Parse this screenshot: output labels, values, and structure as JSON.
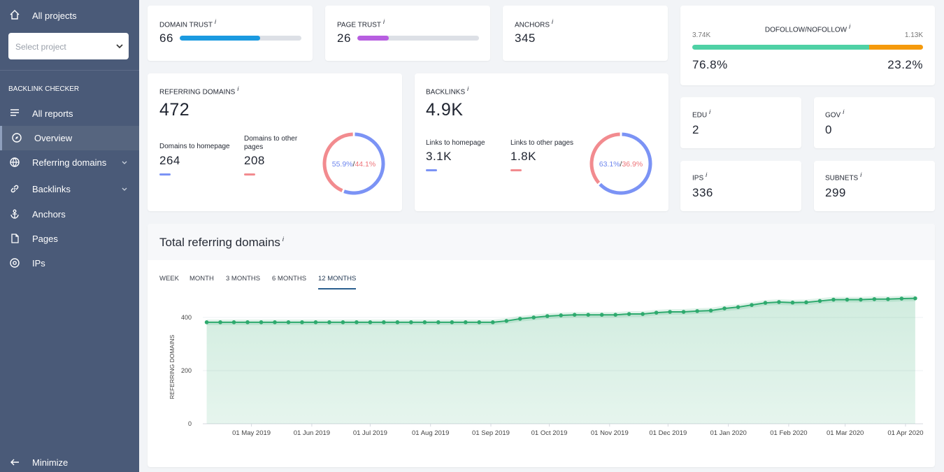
{
  "sidebar": {
    "all_projects": "All projects",
    "select_placeholder": "Select project",
    "section": "BACKLINK CHECKER",
    "nav": [
      "All reports",
      "Overview",
      "Referring domains",
      "Backlinks",
      "Anchors",
      "Pages",
      "IPs"
    ],
    "active": 1,
    "minimize": "Minimize"
  },
  "info_icon": "i",
  "domain_trust": {
    "label": "DOMAIN TRUST",
    "value": 66,
    "xlim": [
      0,
      100
    ]
  },
  "page_trust": {
    "label": "PAGE TRUST",
    "value": 26,
    "xlim": [
      0,
      100
    ]
  },
  "anchors": {
    "label": "ANCHORS",
    "value": 345
  },
  "dofollow": {
    "label": "DOFOLLOW/NOFOLLOW",
    "dofollow_count": "3.74K",
    "nofollow_count": "1.13K",
    "dofollow_share": {
      "value": 76.8,
      "label": "76.8%"
    },
    "nofollow_share": {
      "value": 23.2,
      "label": "23.2%"
    }
  },
  "referring_domains": {
    "label": "REFERRING DOMAINS",
    "value": 472,
    "homepage": {
      "label": "Domains to homepage",
      "value": 264
    },
    "other": {
      "label": "Domains to other pages",
      "value": 208
    },
    "homepage_share": {
      "value": 55.9,
      "label": "55.9%"
    },
    "other_share": {
      "value": 44.1,
      "label": "44.1%"
    },
    "separator": "/"
  },
  "backlinks": {
    "label": "BACKLINKS",
    "value": "4.9K",
    "homepage": {
      "label": "Links to homepage",
      "value": "3.1K"
    },
    "other": {
      "label": "Links to other pages",
      "value": "1.8K"
    },
    "homepage_share": {
      "value": 63.1,
      "label": "63.1%"
    },
    "other_share": {
      "value": 36.9,
      "label": "36.9%"
    },
    "separator": "/"
  },
  "edu": {
    "label": "EDU",
    "value": 2
  },
  "gov": {
    "label": "GOV",
    "value": 0
  },
  "ips": {
    "label": "IPS",
    "value": 336
  },
  "subnets": {
    "label": "SUBNETS",
    "value": 299
  },
  "chart_data": {
    "type": "line",
    "title": "Total referring domains",
    "tabs": [
      "WEEK",
      "MONTH",
      "3 MONTHS",
      "6 MONTHS",
      "12 MONTHS"
    ],
    "active_tab": 4,
    "y_label": "REFERRING DOMAINS",
    "color": "#2eaa6e",
    "grid": true,
    "x": [
      "2019-04-08",
      "2019-04-15",
      "2019-04-22",
      "2019-04-29",
      "2019-05-06",
      "2019-05-13",
      "2019-05-20",
      "2019-05-27",
      "2019-06-03",
      "2019-06-10",
      "2019-06-17",
      "2019-06-24",
      "2019-07-01",
      "2019-07-08",
      "2019-07-15",
      "2019-07-22",
      "2019-07-29",
      "2019-08-05",
      "2019-08-12",
      "2019-08-19",
      "2019-08-26",
      "2019-09-02",
      "2019-09-09",
      "2019-09-16",
      "2019-09-23",
      "2019-09-30",
      "2019-10-07",
      "2019-10-14",
      "2019-10-21",
      "2019-10-28",
      "2019-11-04",
      "2019-11-11",
      "2019-11-18",
      "2019-11-25",
      "2019-12-02",
      "2019-12-09",
      "2019-12-16",
      "2019-12-23",
      "2019-12-30",
      "2020-01-06",
      "2020-01-13",
      "2020-01-20",
      "2020-01-27",
      "2020-02-03",
      "2020-02-10",
      "2020-02-17",
      "2020-02-24",
      "2020-03-02",
      "2020-03-09",
      "2020-03-16",
      "2020-03-23",
      "2020-03-30",
      "2020-04-06"
    ],
    "values": [
      382,
      382,
      382,
      382,
      382,
      382,
      382,
      382,
      382,
      382,
      382,
      382,
      382,
      382,
      382,
      382,
      382,
      382,
      382,
      382,
      382,
      382,
      387,
      395,
      400,
      405,
      408,
      410,
      410,
      410,
      410,
      413,
      413,
      418,
      421,
      421,
      424,
      426,
      434,
      439,
      447,
      455,
      458,
      456,
      457,
      462,
      467,
      467,
      467,
      469,
      469,
      471,
      472
    ],
    "xlim": [
      "2019-04-06",
      "2020-04-10"
    ],
    "ylim": [
      0,
      480
    ],
    "yticks": [
      0,
      200,
      400
    ],
    "xticks": [
      {
        "value": "2019-05-01",
        "label": "01 May 2019"
      },
      {
        "value": "2019-06-01",
        "label": "01 Jun 2019"
      },
      {
        "value": "2019-07-01",
        "label": "01 Jul 2019"
      },
      {
        "value": "2019-08-01",
        "label": "01 Aug 2019"
      },
      {
        "value": "2019-09-01",
        "label": "01 Sep 2019"
      },
      {
        "value": "2019-10-01",
        "label": "01 Oct 2019"
      },
      {
        "value": "2019-11-01",
        "label": "01 Nov 2019"
      },
      {
        "value": "2019-12-01",
        "label": "01 Dec 2019"
      },
      {
        "value": "2020-01-01",
        "label": "01 Jan 2020"
      },
      {
        "value": "2020-02-01",
        "label": "01 Feb 2020"
      },
      {
        "value": "2020-03-01",
        "label": "01 Mar 2020"
      },
      {
        "value": "2020-04-01",
        "label": "01 Apr 2020"
      }
    ]
  }
}
